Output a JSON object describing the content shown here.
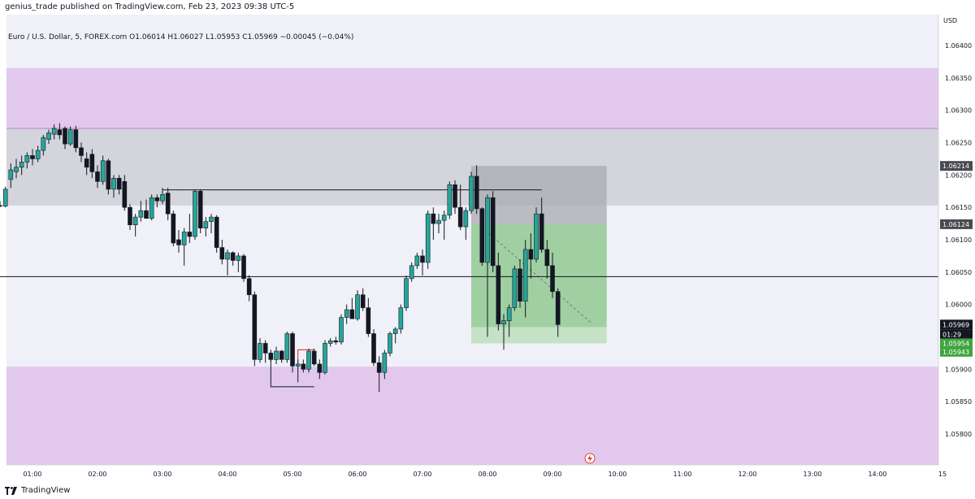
{
  "header": {
    "publisher_line": "genius_trade published on TradingView.com, Feb 23, 2023 09:38 UTC-5",
    "symbol_line": "Euro / U.S. Dollar, 5, FOREX.com  O1.06014  H1.06027  L1.05953  C1.05969  −0.00045 (−0.04%)"
  },
  "footer": {
    "brand": "TradingView",
    "logo_icon": "tradingview-logo-icon"
  },
  "colors": {
    "up": "#26a69a",
    "down": "#131722",
    "zone_purple": "#e1c8ec",
    "zone_gray": "#d4d4dc",
    "target_green": "#8cc78c",
    "stop_gray": "#a9a9b0",
    "background": "#f0f0f8"
  },
  "chart_data": {
    "type": "candlestick",
    "currency_label": "USD",
    "y_ticks": [
      "1.06400",
      "1.06350",
      "1.06300",
      "1.06250",
      "1.06200",
      "1.06150",
      "1.06100",
      "1.06050",
      "1.06000",
      "1.05900",
      "1.05850",
      "1.05800"
    ],
    "x_ticks": [
      "01:00",
      "02:00",
      "03:00",
      "04:00",
      "05:00",
      "06:00",
      "07:00",
      "08:00",
      "09:00",
      "10:00",
      "11:00",
      "12:00",
      "13:00",
      "14:00",
      "15"
    ],
    "price_labels": [
      {
        "text": "1.06214",
        "price": 1.06214,
        "style": "dark"
      },
      {
        "text": "1.06124",
        "price": 1.06124,
        "style": "dark"
      },
      {
        "text": "1.05969",
        "price": 1.05969,
        "style": "black"
      },
      {
        "text": "01:29",
        "price": 1.05954,
        "style": "black"
      },
      {
        "text": "1.05954",
        "price": 1.0594,
        "style": "green"
      },
      {
        "text": "1.05943",
        "price": 1.05927,
        "style": "green"
      }
    ],
    "zones": [
      {
        "type": "supply",
        "from": 1.06272,
        "to": 1.06365
      },
      {
        "type": "supply",
        "from": 1.06153,
        "to": 1.06272
      },
      {
        "type": "demand",
        "from": 1.0574,
        "to": 1.05904
      }
    ],
    "lines": [
      {
        "price": 1.06177,
        "from": "03:00",
        "to": "08:50"
      },
      {
        "price": 1.06043,
        "from": "00:30",
        "to": "15:00"
      }
    ],
    "position": {
      "entry": 1.06124,
      "stop": 1.06214,
      "target": 1.05965,
      "target_extended": 1.0594,
      "from": "07:45",
      "to": "09:50"
    },
    "candles": [
      {
        "t": "00:30",
        "o": 1.06153,
        "h": 1.0616,
        "l": 1.0615,
        "c": 1.06152
      },
      {
        "t": "00:35",
        "o": 1.06152,
        "h": 1.06182,
        "l": 1.0615,
        "c": 1.06178
      },
      {
        "t": "00:40",
        "o": 1.06193,
        "h": 1.06218,
        "l": 1.0618,
        "c": 1.06208
      },
      {
        "t": "00:45",
        "o": 1.06205,
        "h": 1.06225,
        "l": 1.06195,
        "c": 1.06212
      },
      {
        "t": "00:50",
        "o": 1.06212,
        "h": 1.0623,
        "l": 1.062,
        "c": 1.0622
      },
      {
        "t": "00:55",
        "o": 1.0622,
        "h": 1.06235,
        "l": 1.0621,
        "c": 1.0623
      },
      {
        "t": "01:00",
        "o": 1.0623,
        "h": 1.0624,
        "l": 1.06215,
        "c": 1.06225
      },
      {
        "t": "01:05",
        "o": 1.06225,
        "h": 1.06245,
        "l": 1.0622,
        "c": 1.06238
      },
      {
        "t": "01:10",
        "o": 1.06238,
        "h": 1.06262,
        "l": 1.0623,
        "c": 1.06258
      },
      {
        "t": "01:15",
        "o": 1.06255,
        "h": 1.0627,
        "l": 1.06248,
        "c": 1.06265
      },
      {
        "t": "01:20",
        "o": 1.06263,
        "h": 1.06278,
        "l": 1.06255,
        "c": 1.06272
      },
      {
        "t": "01:25",
        "o": 1.0627,
        "h": 1.0628,
        "l": 1.06255,
        "c": 1.06262
      },
      {
        "t": "01:30",
        "o": 1.06272,
        "h": 1.06275,
        "l": 1.0624,
        "c": 1.06248
      },
      {
        "t": "01:35",
        "o": 1.06248,
        "h": 1.06275,
        "l": 1.06245,
        "c": 1.0627
      },
      {
        "t": "01:40",
        "o": 1.0627,
        "h": 1.06276,
        "l": 1.06235,
        "c": 1.06242
      },
      {
        "t": "01:45",
        "o": 1.06242,
        "h": 1.0625,
        "l": 1.0622,
        "c": 1.0623
      },
      {
        "t": "01:50",
        "o": 1.06225,
        "h": 1.06235,
        "l": 1.062,
        "c": 1.06212
      },
      {
        "t": "01:55",
        "o": 1.06232,
        "h": 1.0624,
        "l": 1.06195,
        "c": 1.06205
      },
      {
        "t": "02:00",
        "o": 1.06205,
        "h": 1.06215,
        "l": 1.0618,
        "c": 1.0619
      },
      {
        "t": "02:05",
        "o": 1.0619,
        "h": 1.0623,
        "l": 1.06185,
        "c": 1.06222
      },
      {
        "t": "02:10",
        "o": 1.06222,
        "h": 1.06225,
        "l": 1.0617,
        "c": 1.06178
      },
      {
        "t": "02:15",
        "o": 1.06178,
        "h": 1.062,
        "l": 1.06165,
        "c": 1.06195
      },
      {
        "t": "02:20",
        "o": 1.06195,
        "h": 1.062,
        "l": 1.0617,
        "c": 1.06178
      },
      {
        "t": "02:25",
        "o": 1.0619,
        "h": 1.062,
        "l": 1.06145,
        "c": 1.0615
      },
      {
        "t": "02:30",
        "o": 1.0615,
        "h": 1.06155,
        "l": 1.06115,
        "c": 1.06123
      },
      {
        "t": "02:35",
        "o": 1.06123,
        "h": 1.0614,
        "l": 1.06105,
        "c": 1.06135
      },
      {
        "t": "02:40",
        "o": 1.06135,
        "h": 1.0616,
        "l": 1.06128,
        "c": 1.06145
      },
      {
        "t": "02:45",
        "o": 1.06145,
        "h": 1.06162,
        "l": 1.06135,
        "c": 1.06133
      },
      {
        "t": "02:50",
        "o": 1.06133,
        "h": 1.0617,
        "l": 1.0613,
        "c": 1.06165
      },
      {
        "t": "02:55",
        "o": 1.06165,
        "h": 1.0617,
        "l": 1.0615,
        "c": 1.0616
      },
      {
        "t": "03:00",
        "o": 1.0616,
        "h": 1.0618,
        "l": 1.06155,
        "c": 1.0617
      },
      {
        "t": "03:05",
        "o": 1.06172,
        "h": 1.0618,
        "l": 1.0613,
        "c": 1.0614
      },
      {
        "t": "03:10",
        "o": 1.0614,
        "h": 1.06145,
        "l": 1.0609,
        "c": 1.06095
      },
      {
        "t": "03:15",
        "o": 1.061,
        "h": 1.06115,
        "l": 1.0608,
        "c": 1.06092
      },
      {
        "t": "03:20",
        "o": 1.06092,
        "h": 1.06118,
        "l": 1.0606,
        "c": 1.06112
      },
      {
        "t": "03:25",
        "o": 1.06112,
        "h": 1.0614,
        "l": 1.06095,
        "c": 1.06105
      },
      {
        "t": "03:30",
        "o": 1.06105,
        "h": 1.06178,
        "l": 1.061,
        "c": 1.06175
      },
      {
        "t": "03:35",
        "o": 1.06175,
        "h": 1.06178,
        "l": 1.0611,
        "c": 1.06118
      },
      {
        "t": "03:40",
        "o": 1.06118,
        "h": 1.06135,
        "l": 1.06105,
        "c": 1.06128
      },
      {
        "t": "03:45",
        "o": 1.06128,
        "h": 1.0614,
        "l": 1.0611,
        "c": 1.06135
      },
      {
        "t": "03:50",
        "o": 1.06135,
        "h": 1.06138,
        "l": 1.0608,
        "c": 1.06088
      },
      {
        "t": "03:55",
        "o": 1.06088,
        "h": 1.061,
        "l": 1.06062,
        "c": 1.0607
      },
      {
        "t": "04:00",
        "o": 1.0607,
        "h": 1.06085,
        "l": 1.06045,
        "c": 1.0608
      },
      {
        "t": "04:05",
        "o": 1.0608,
        "h": 1.06082,
        "l": 1.0606,
        "c": 1.06068
      },
      {
        "t": "04:10",
        "o": 1.06068,
        "h": 1.0608,
        "l": 1.0605,
        "c": 1.06075
      },
      {
        "t": "04:15",
        "o": 1.06075,
        "h": 1.06078,
        "l": 1.06035,
        "c": 1.0604
      },
      {
        "t": "04:20",
        "o": 1.0604,
        "h": 1.06045,
        "l": 1.06005,
        "c": 1.06015
      },
      {
        "t": "04:25",
        "o": 1.06015,
        "h": 1.0602,
        "l": 1.05905,
        "c": 1.05915
      },
      {
        "t": "04:30",
        "o": 1.05915,
        "h": 1.05948,
        "l": 1.0591,
        "c": 1.0594
      },
      {
        "t": "04:35",
        "o": 1.0594,
        "h": 1.05945,
        "l": 1.0591,
        "c": 1.05925
      },
      {
        "t": "04:40",
        "o": 1.05925,
        "h": 1.0593,
        "l": 1.05912,
        "c": 1.05915
      },
      {
        "t": "04:45",
        "o": 1.05915,
        "h": 1.05935,
        "l": 1.05908,
        "c": 1.05928
      },
      {
        "t": "04:50",
        "o": 1.05928,
        "h": 1.0593,
        "l": 1.0591,
        "c": 1.05915
      },
      {
        "t": "04:55",
        "o": 1.05915,
        "h": 1.05958,
        "l": 1.0591,
        "c": 1.05955
      },
      {
        "t": "05:00",
        "o": 1.05955,
        "h": 1.05958,
        "l": 1.05895,
        "c": 1.05905
      },
      {
        "t": "05:05",
        "o": 1.05905,
        "h": 1.05915,
        "l": 1.0588,
        "c": 1.05908
      },
      {
        "t": "05:10",
        "o": 1.05908,
        "h": 1.05915,
        "l": 1.05895,
        "c": 1.059
      },
      {
        "t": "05:15",
        "o": 1.059,
        "h": 1.05932,
        "l": 1.05895,
        "c": 1.05928
      },
      {
        "t": "05:20",
        "o": 1.05928,
        "h": 1.05932,
        "l": 1.05905,
        "c": 1.05908
      },
      {
        "t": "05:25",
        "o": 1.05908,
        "h": 1.05915,
        "l": 1.05885,
        "c": 1.05895
      },
      {
        "t": "05:30",
        "o": 1.05895,
        "h": 1.05945,
        "l": 1.05892,
        "c": 1.0594
      },
      {
        "t": "05:35",
        "o": 1.0594,
        "h": 1.05948,
        "l": 1.05935,
        "c": 1.05944
      },
      {
        "t": "05:40",
        "o": 1.05944,
        "h": 1.0595,
        "l": 1.05938,
        "c": 1.05942
      },
      {
        "t": "05:45",
        "o": 1.05942,
        "h": 1.05985,
        "l": 1.05938,
        "c": 1.0598
      },
      {
        "t": "05:50",
        "o": 1.0598,
        "h": 1.06,
        "l": 1.0597,
        "c": 1.05992
      },
      {
        "t": "05:55",
        "o": 1.05992,
        "h": 1.0601,
        "l": 1.0598,
        "c": 1.05978
      },
      {
        "t": "06:00",
        "o": 1.05978,
        "h": 1.06022,
        "l": 1.05975,
        "c": 1.06015
      },
      {
        "t": "06:05",
        "o": 1.06015,
        "h": 1.06025,
        "l": 1.0599,
        "c": 1.05995
      },
      {
        "t": "06:10",
        "o": 1.05995,
        "h": 1.0601,
        "l": 1.0595,
        "c": 1.05955
      },
      {
        "t": "06:15",
        "o": 1.05955,
        "h": 1.05962,
        "l": 1.05905,
        "c": 1.0591
      },
      {
        "t": "06:20",
        "o": 1.0591,
        "h": 1.0592,
        "l": 1.05865,
        "c": 1.05895
      },
      {
        "t": "06:25",
        "o": 1.05895,
        "h": 1.0593,
        "l": 1.05885,
        "c": 1.05925
      },
      {
        "t": "06:30",
        "o": 1.05925,
        "h": 1.05958,
        "l": 1.0592,
        "c": 1.05955
      },
      {
        "t": "06:35",
        "o": 1.05955,
        "h": 1.05965,
        "l": 1.0594,
        "c": 1.05962
      },
      {
        "t": "06:40",
        "o": 1.05962,
        "h": 1.06,
        "l": 1.05955,
        "c": 1.05995
      },
      {
        "t": "06:45",
        "o": 1.05995,
        "h": 1.06045,
        "l": 1.0599,
        "c": 1.0604
      },
      {
        "t": "06:50",
        "o": 1.0604,
        "h": 1.06065,
        "l": 1.06035,
        "c": 1.0606
      },
      {
        "t": "06:55",
        "o": 1.0606,
        "h": 1.0608,
        "l": 1.06055,
        "c": 1.06075
      },
      {
        "t": "07:00",
        "o": 1.06075,
        "h": 1.06085,
        "l": 1.06045,
        "c": 1.06065
      },
      {
        "t": "07:05",
        "o": 1.06065,
        "h": 1.06145,
        "l": 1.06055,
        "c": 1.0614
      },
      {
        "t": "07:10",
        "o": 1.0614,
        "h": 1.0615,
        "l": 1.061,
        "c": 1.06125
      },
      {
        "t": "07:15",
        "o": 1.06125,
        "h": 1.0614,
        "l": 1.0611,
        "c": 1.0613
      },
      {
        "t": "07:20",
        "o": 1.0613,
        "h": 1.06145,
        "l": 1.061,
        "c": 1.06138
      },
      {
        "t": "07:25",
        "o": 1.06138,
        "h": 1.0619,
        "l": 1.06132,
        "c": 1.06185
      },
      {
        "t": "07:30",
        "o": 1.06185,
        "h": 1.06192,
        "l": 1.0614,
        "c": 1.0615
      },
      {
        "t": "07:35",
        "o": 1.0615,
        "h": 1.06185,
        "l": 1.06115,
        "c": 1.0612
      },
      {
        "t": "07:40",
        "o": 1.0612,
        "h": 1.0615,
        "l": 1.061,
        "c": 1.06145
      },
      {
        "t": "07:45",
        "o": 1.06145,
        "h": 1.06205,
        "l": 1.0614,
        "c": 1.06198
      },
      {
        "t": "07:50",
        "o": 1.06198,
        "h": 1.06215,
        "l": 1.0614,
        "c": 1.06148
      },
      {
        "t": "07:55",
        "o": 1.06148,
        "h": 1.0615,
        "l": 1.0606,
        "c": 1.06065
      },
      {
        "t": "08:00",
        "o": 1.06065,
        "h": 1.0617,
        "l": 1.0595,
        "c": 1.06165
      },
      {
        "t": "08:05",
        "o": 1.06165,
        "h": 1.06175,
        "l": 1.0605,
        "c": 1.0606
      }
    ]
  }
}
